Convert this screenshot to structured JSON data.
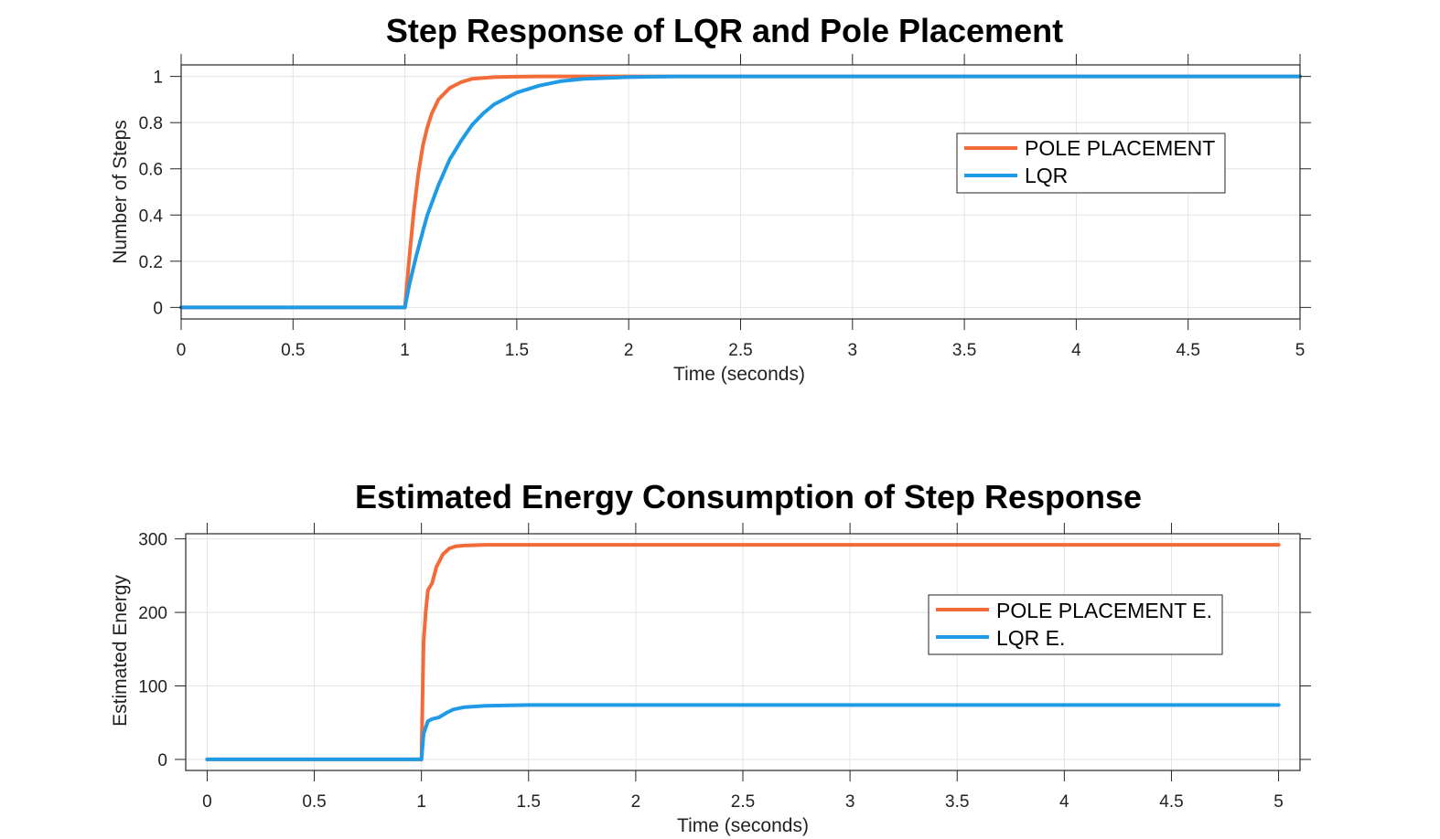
{
  "chart_data": [
    {
      "type": "line",
      "title": "Step Response of LQR and Pole Placement",
      "xlabel": "Time (seconds)",
      "ylabel": "Number of Steps",
      "xlim": [
        0,
        5
      ],
      "ylim": [
        -0.05,
        1.05
      ],
      "xticks": [
        0,
        0.5,
        1,
        1.5,
        2,
        2.5,
        3,
        3.5,
        4,
        4.5,
        5
      ],
      "xtick_labels": [
        "0",
        "0.5",
        "1",
        "1.5",
        "2",
        "2.5",
        "3",
        "3.5",
        "4",
        "4.5",
        "5"
      ],
      "yticks": [
        0,
        0.2,
        0.4,
        0.6,
        0.8,
        1
      ],
      "ytick_labels": [
        "0",
        "0.2",
        "0.4",
        "0.6",
        "0.8",
        "1"
      ],
      "grid": true,
      "legend_position": "top-right",
      "series": [
        {
          "name": "POLE PLACEMENT",
          "color": "#F26B38",
          "x": [
            0,
            1,
            1.02,
            1.04,
            1.06,
            1.08,
            1.1,
            1.12,
            1.15,
            1.2,
            1.25,
            1.3,
            1.4,
            1.5,
            1.6,
            1.8,
            2,
            3,
            4,
            5
          ],
          "y": [
            0,
            0,
            0.22,
            0.42,
            0.58,
            0.7,
            0.78,
            0.84,
            0.9,
            0.95,
            0.975,
            0.99,
            0.997,
            0.999,
            1,
            1,
            1,
            1,
            1,
            1
          ]
        },
        {
          "name": "LQR",
          "color": "#1F9BE6",
          "x": [
            0,
            1,
            1.02,
            1.05,
            1.08,
            1.1,
            1.15,
            1.2,
            1.25,
            1.3,
            1.35,
            1.4,
            1.5,
            1.6,
            1.7,
            1.8,
            2,
            2.2,
            3,
            4,
            5
          ],
          "y": [
            0,
            0,
            0.1,
            0.22,
            0.33,
            0.4,
            0.53,
            0.64,
            0.72,
            0.79,
            0.84,
            0.88,
            0.93,
            0.96,
            0.98,
            0.99,
            0.997,
            1,
            1,
            1,
            1
          ]
        }
      ]
    },
    {
      "type": "line",
      "title": "Estimated Energy Consumption of Step Response",
      "xlabel": "Time (seconds)",
      "ylabel": "Estimated Energy",
      "xlim": [
        -0.1,
        5.1
      ],
      "ylim": [
        -15,
        307
      ],
      "xticks": [
        0,
        0.5,
        1,
        1.5,
        2,
        2.5,
        3,
        3.5,
        4,
        4.5,
        5
      ],
      "xtick_labels": [
        "0",
        "0.5",
        "1",
        "1.5",
        "2",
        "2.5",
        "3",
        "3.5",
        "4",
        "4.5",
        "5"
      ],
      "yticks": [
        0,
        100,
        200,
        300
      ],
      "ytick_labels": [
        "0",
        "100",
        "200",
        "300"
      ],
      "grid": true,
      "legend_position": "top-right",
      "series": [
        {
          "name": "POLE PLACEMENT E.",
          "color": "#F26B38",
          "x": [
            0,
            1,
            1.005,
            1.01,
            1.02,
            1.03,
            1.05,
            1.07,
            1.1,
            1.13,
            1.16,
            1.2,
            1.3,
            1.5,
            2,
            3,
            4,
            5
          ],
          "y": [
            0,
            0,
            80,
            160,
            200,
            230,
            240,
            262,
            279,
            287,
            290,
            291,
            292,
            292,
            292,
            292,
            292,
            292
          ]
        },
        {
          "name": "LQR E.",
          "color": "#1F9BE6",
          "x": [
            0,
            1,
            1.01,
            1.03,
            1.05,
            1.08,
            1.12,
            1.15,
            1.2,
            1.3,
            1.5,
            2,
            3,
            4,
            5
          ],
          "y": [
            0,
            0,
            35,
            52,
            55,
            57,
            64,
            68,
            71,
            73,
            74,
            74,
            74,
            74,
            74
          ]
        }
      ]
    }
  ]
}
